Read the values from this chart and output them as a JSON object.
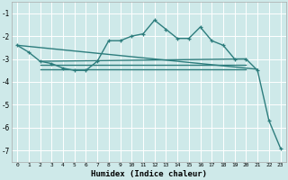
{
  "xlabel": "Humidex (Indice chaleur)",
  "ylabel": "",
  "bg_color": "#cee9e9",
  "line_color": "#2d7d7d",
  "grid_color": "#ffffff",
  "xlim": [
    -0.5,
    23.5
  ],
  "ylim": [
    -7.5,
    -0.5
  ],
  "yticks": [
    -1,
    -2,
    -3,
    -4,
    -5,
    -6,
    -7
  ],
  "xticks": [
    0,
    1,
    2,
    3,
    4,
    5,
    6,
    7,
    8,
    9,
    10,
    11,
    12,
    13,
    14,
    15,
    16,
    17,
    18,
    19,
    20,
    21,
    22,
    23
  ],
  "line1_x": [
    0,
    1,
    2,
    3,
    4,
    5,
    6,
    7,
    8,
    9,
    10,
    11,
    12,
    13,
    14,
    15,
    16,
    17,
    18,
    19,
    20,
    21,
    22,
    23
  ],
  "line1_y": [
    -2.4,
    -2.7,
    -3.1,
    -3.2,
    -3.4,
    -3.5,
    -3.5,
    -3.1,
    -2.2,
    -2.2,
    -2.0,
    -1.9,
    -1.3,
    -1.7,
    -2.1,
    -2.1,
    -1.6,
    -2.2,
    -2.4,
    -3.0,
    -3.0,
    -3.5,
    -5.7,
    -6.9
  ],
  "line2_x": [
    2,
    20
  ],
  "line2_y": [
    -3.1,
    -3.0
  ],
  "line3_x": [
    2,
    20
  ],
  "line3_y": [
    -3.25,
    -3.25
  ],
  "line4_x": [
    2,
    20
  ],
  "line4_y": [
    -3.45,
    -3.45
  ],
  "line5_x": [
    0,
    21
  ],
  "line5_y": [
    -2.4,
    -3.45
  ]
}
